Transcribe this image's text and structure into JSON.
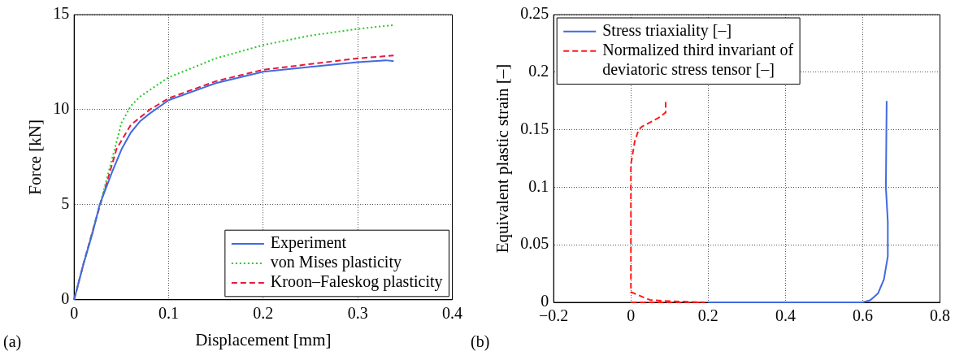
{
  "chart_data": [
    {
      "type": "line",
      "xlabel": "Displacement [mm]",
      "ylabel": "Force [kN]",
      "xlim": [
        0,
        0.4
      ],
      "ylim": [
        0,
        15
      ],
      "xticks": [
        0,
        0.1,
        0.2,
        0.3,
        0.4
      ],
      "yticks": [
        0,
        5,
        10,
        15
      ],
      "grid": true,
      "legend": "bottom right",
      "annotations": [
        "(a)"
      ],
      "series": [
        {
          "name": "Experiment",
          "color": "#4169e1",
          "line_style": "solid",
          "x": [
            0,
            0.01,
            0.02,
            0.027,
            0.04,
            0.05,
            0.06,
            0.07,
            0.08,
            0.1,
            0.15,
            0.2,
            0.25,
            0.3,
            0.33,
            0.338
          ],
          "values": [
            0,
            1.9,
            3.6,
            5,
            6.7,
            7.9,
            8.8,
            9.4,
            9.8,
            10.5,
            11.4,
            12.0,
            12.25,
            12.5,
            12.6,
            12.55
          ]
        },
        {
          "name": "von Mises plasticity",
          "color": "#22cc22",
          "line_style": "dotted",
          "x": [
            0,
            0.01,
            0.02,
            0.03,
            0.043,
            0.05,
            0.06,
            0.07,
            0.1,
            0.15,
            0.2,
            0.25,
            0.3,
            0.338
          ],
          "values": [
            0,
            1.9,
            3.7,
            5.5,
            7.95,
            9.3,
            10.2,
            10.7,
            11.7,
            12.7,
            13.4,
            13.9,
            14.25,
            14.45
          ]
        },
        {
          "name": "Kroon–Faleskog plasticity",
          "color": "#e8193c",
          "line_style": "dashed",
          "x": [
            0,
            0.01,
            0.02,
            0.03,
            0.045,
            0.06,
            0.08,
            0.1,
            0.15,
            0.2,
            0.25,
            0.3,
            0.338
          ],
          "values": [
            0,
            1.9,
            3.7,
            5.4,
            7.95,
            9.2,
            10.0,
            10.6,
            11.5,
            12.1,
            12.4,
            12.7,
            12.85
          ]
        }
      ]
    },
    {
      "type": "line",
      "ylabel": "Equivalent plastic strain [–]",
      "xlim": [
        -0.2,
        0.8
      ],
      "ylim": [
        0,
        0.25
      ],
      "xticks": [
        {
          "value": -0.2,
          "label": "−0.2"
        },
        0,
        0.2,
        0.4,
        0.6,
        0.8
      ],
      "yticks": [
        0,
        0.05,
        0.1,
        0.15,
        0.2,
        0.25
      ],
      "grid": true,
      "legend": "top left",
      "annotations": [
        "(b)"
      ],
      "series": [
        {
          "name": "Stress triaxiality [–]",
          "color": "#4169e1",
          "line_style": "solid",
          "x": [
            0.2,
            0.6,
            0.62,
            0.64,
            0.655,
            0.665,
            0.665,
            0.66,
            0.662
          ],
          "values": [
            0,
            0,
            0.002,
            0.008,
            0.02,
            0.04,
            0.07,
            0.1,
            0.175
          ]
        },
        {
          "name": "Normalized third invariant of deviatoric stress tensor [–]",
          "color": "#ff1a1a",
          "line_style": "dashed",
          "x": [
            0,
            0.19,
            0.1,
            0.05,
            0,
            0,
            0,
            0.01,
            0.02,
            0.03,
            0.07,
            0.09,
            0.09
          ],
          "values": [
            0,
            0,
            0.001,
            0.002,
            0.009,
            0.05,
            0.12,
            0.14,
            0.15,
            0.153,
            0.16,
            0.165,
            0.175
          ]
        }
      ]
    }
  ]
}
